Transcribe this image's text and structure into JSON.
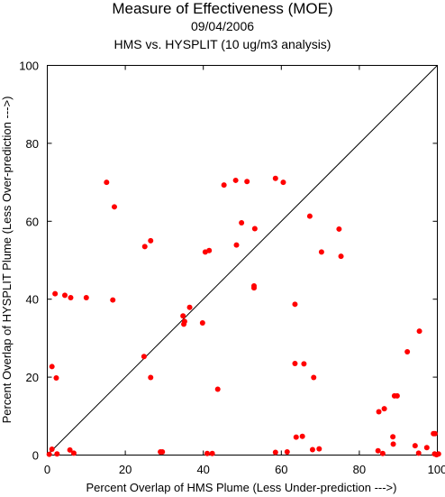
{
  "chart_data": {
    "type": "scatter",
    "title": "Measure of Effectiveness (MOE)",
    "subtitle": "09/04/2006",
    "subtitle2": "HMS vs. HYSPLIT  (10 ug/m3 analysis)",
    "xlabel": "Percent Overlap of HMS Plume (Less Under-prediction --->)",
    "ylabel": "Percent Overlap of HYSPLIT Plume (Less Over-prediction --->)",
    "xlim": [
      0,
      100
    ],
    "ylim": [
      0,
      100
    ],
    "xticks": [
      0,
      20,
      40,
      60,
      80,
      100
    ],
    "yticks": [
      0,
      20,
      40,
      60,
      80,
      100
    ],
    "grid": false,
    "reference_line": "diagonal",
    "point_color": "#ff0000",
    "points": [
      [
        0.5,
        0.2
      ],
      [
        1.2,
        1.5
      ],
      [
        2.5,
        0.3
      ],
      [
        5.8,
        1.3
      ],
      [
        6.8,
        0.5
      ],
      [
        1.2,
        22.7
      ],
      [
        2.3,
        19.8
      ],
      [
        2.0,
        41.4
      ],
      [
        4.5,
        41.0
      ],
      [
        6.0,
        40.4
      ],
      [
        10.0,
        40.4
      ],
      [
        15.2,
        70.0
      ],
      [
        17.2,
        63.7
      ],
      [
        16.8,
        39.8
      ],
      [
        25.0,
        53.5
      ],
      [
        26.5,
        55.0
      ],
      [
        24.8,
        25.3
      ],
      [
        26.5,
        19.9
      ],
      [
        29.0,
        0.8
      ],
      [
        29.5,
        0.8
      ],
      [
        34.8,
        35.7
      ],
      [
        35.2,
        34.3
      ],
      [
        35.0,
        33.6
      ],
      [
        36.5,
        37.9
      ],
      [
        39.8,
        33.9
      ],
      [
        40.5,
        52.1
      ],
      [
        41.5,
        52.5
      ],
      [
        41.0,
        0.4
      ],
      [
        42.3,
        0.4
      ],
      [
        43.7,
        16.9
      ],
      [
        45.3,
        69.3
      ],
      [
        48.3,
        70.5
      ],
      [
        51.2,
        70.2
      ],
      [
        48.5,
        53.9
      ],
      [
        49.8,
        59.6
      ],
      [
        53.2,
        58.1
      ],
      [
        53.0,
        43.4
      ],
      [
        53.0,
        42.9
      ],
      [
        58.5,
        71.0
      ],
      [
        60.5,
        70.0
      ],
      [
        58.5,
        0.7
      ],
      [
        61.5,
        0.8
      ],
      [
        63.5,
        38.7
      ],
      [
        63.5,
        23.5
      ],
      [
        63.8,
        4.6
      ],
      [
        65.4,
        4.8
      ],
      [
        65.8,
        23.4
      ],
      [
        67.3,
        61.3
      ],
      [
        68.0,
        1.4
      ],
      [
        68.3,
        19.9
      ],
      [
        69.7,
        1.6
      ],
      [
        70.3,
        52.1
      ],
      [
        74.8,
        58.0
      ],
      [
        75.3,
        51.0
      ],
      [
        84.8,
        1.1
      ],
      [
        85.0,
        11.1
      ],
      [
        86.0,
        0.4
      ],
      [
        86.4,
        11.9
      ],
      [
        88.6,
        4.7
      ],
      [
        88.7,
        2.8
      ],
      [
        89.0,
        15.2
      ],
      [
        89.7,
        15.2
      ],
      [
        92.3,
        26.5
      ],
      [
        94.3,
        2.4
      ],
      [
        95.2,
        0.5
      ],
      [
        95.4,
        31.8
      ],
      [
        97.3,
        1.9
      ],
      [
        99.0,
        5.5
      ],
      [
        99.4,
        5.5
      ],
      [
        99.3,
        0.3
      ],
      [
        99.8,
        0.1
      ],
      [
        100.3,
        0.3
      ]
    ]
  }
}
